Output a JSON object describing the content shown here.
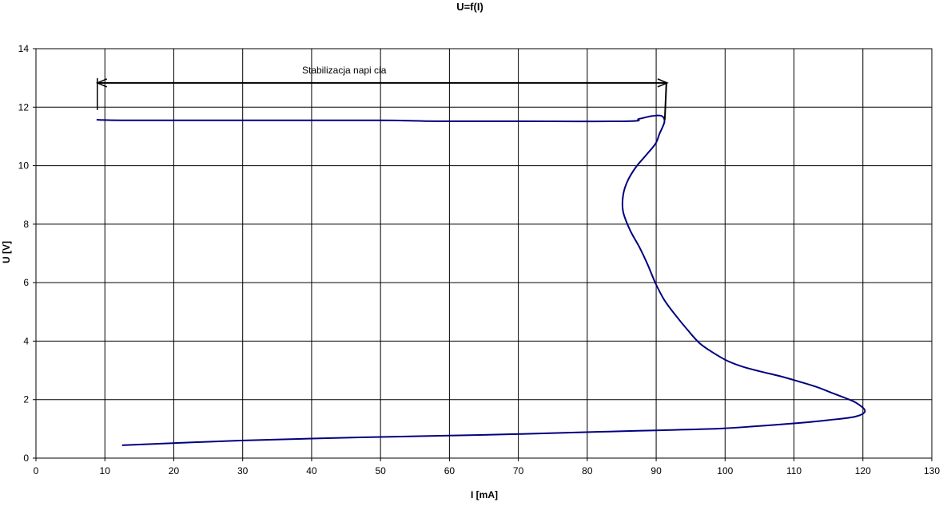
{
  "chart_data": {
    "type": "line",
    "title": "U=f(I)",
    "xlabel": "I [mA]",
    "ylabel": "U [V]",
    "xlim": [
      0,
      130
    ],
    "ylim": [
      0,
      14
    ],
    "xticks": [
      0,
      10,
      20,
      30,
      40,
      50,
      60,
      70,
      80,
      90,
      100,
      110,
      120,
      130
    ],
    "yticks": [
      0,
      2,
      4,
      6,
      8,
      10,
      12,
      14
    ],
    "grid": true,
    "legend": "none",
    "series": [
      {
        "color": "#000080",
        "points": [
          [
            8.8,
            11.57
          ],
          [
            13,
            11.55
          ],
          [
            30,
            11.55
          ],
          [
            50,
            11.55
          ],
          [
            58,
            11.52
          ],
          [
            70,
            11.52
          ],
          [
            85.8,
            11.52
          ],
          [
            87.5,
            11.6
          ],
          [
            89.5,
            11.7
          ],
          [
            90.8,
            11.7
          ],
          [
            91.2,
            11.5
          ],
          [
            90.5,
            11.1
          ],
          [
            89.9,
            10.75
          ],
          [
            88.5,
            10.35
          ],
          [
            87,
            9.93
          ],
          [
            85.8,
            9.45
          ],
          [
            85.2,
            8.98
          ],
          [
            85.2,
            8.43
          ],
          [
            86.2,
            7.8
          ],
          [
            87.6,
            7.2
          ],
          [
            88.8,
            6.6
          ],
          [
            89.9,
            5.98
          ],
          [
            91.2,
            5.4
          ],
          [
            92.8,
            4.89
          ],
          [
            94.5,
            4.4
          ],
          [
            96.3,
            3.93
          ],
          [
            98.3,
            3.6
          ],
          [
            100.3,
            3.33
          ],
          [
            102.5,
            3.13
          ],
          [
            105,
            2.97
          ],
          [
            108,
            2.8
          ],
          [
            110.7,
            2.62
          ],
          [
            113.2,
            2.44
          ],
          [
            115.4,
            2.24
          ],
          [
            117.5,
            2.05
          ],
          [
            119.1,
            1.88
          ],
          [
            120.3,
            1.61
          ],
          [
            118.9,
            1.42
          ],
          [
            115,
            1.3
          ],
          [
            110.7,
            1.2
          ],
          [
            105,
            1.1
          ],
          [
            99.2,
            1.01
          ],
          [
            90,
            0.95
          ],
          [
            81.8,
            0.9
          ],
          [
            64.4,
            0.79
          ],
          [
            47,
            0.71
          ],
          [
            29.6,
            0.6
          ],
          [
            12.5,
            0.44
          ]
        ]
      }
    ],
    "annotations": [
      {
        "text": "Stabilizacja napi  cia",
        "type": "double-arrow",
        "x_from": 8.9,
        "x_to": 91.6,
        "y": 12.83
      }
    ]
  }
}
